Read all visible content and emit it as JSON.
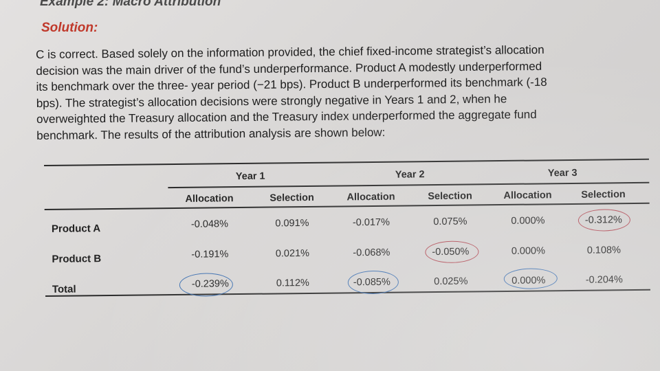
{
  "header": {
    "title": "Example 2: Macro Attribution"
  },
  "solution": {
    "label": "Solution:",
    "lines": [
      "C is correct. Based solely on the information provided, the chief fixed-income strategist’s allocation",
      "decision was the main driver of the fund’s underperformance. Product A modestly underperformed",
      "its benchmark over the three- year period (−21 bps). Product B underperformed its benchmark (-18",
      "bps). The strategist’s allocation decisions were strongly negative in Years 1 and 2, when he",
      "overweighted the Treasury allocation and the Treasury index underperformed the aggregate fund",
      "benchmark. The results of the attribution analysis are shown below:"
    ]
  },
  "table": {
    "years": [
      "Year 1",
      "Year 2",
      "Year 3"
    ],
    "subheaders": [
      "Allocation",
      "Selection",
      "Allocation",
      "Selection",
      "Allocation",
      "Selection"
    ],
    "rows": [
      {
        "label": "Product A",
        "values": [
          "-0.048%",
          "0.091%",
          "-0.017%",
          "0.075%",
          "0.000%",
          "-0.312%"
        ]
      },
      {
        "label": "Product B",
        "values": [
          "-0.191%",
          "0.021%",
          "-0.068%",
          "-0.050%",
          "0.000%",
          "0.108%"
        ]
      },
      {
        "label": "Total",
        "values": [
          "-0.239%",
          "0.112%",
          "-0.085%",
          "0.025%",
          "0.000%",
          "-0.204%"
        ]
      }
    ]
  }
}
